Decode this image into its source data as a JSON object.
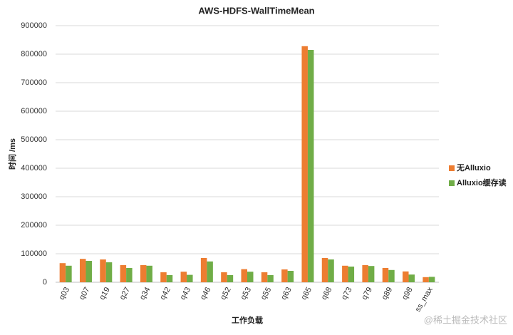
{
  "chart_data": {
    "type": "bar",
    "title": "AWS-HDFS-WallTimeMean",
    "x_label": "工作负载",
    "y_label": "时间 /ms",
    "categories": [
      "q03",
      "q07",
      "q19",
      "q27",
      "q34",
      "q42",
      "q43",
      "q46",
      "q52",
      "q53",
      "q55",
      "q63",
      "q65",
      "q68",
      "q73",
      "q79",
      "q89",
      "q98",
      "ss_max"
    ],
    "series": [
      {
        "name": "无Alluxio",
        "color": "#ed7d31",
        "values": [
          67000,
          82000,
          80000,
          60000,
          60000,
          35000,
          37000,
          85000,
          35000,
          46000,
          35000,
          45000,
          828000,
          85000,
          58000,
          60000,
          50000,
          38000,
          18000
        ]
      },
      {
        "name": "Alluxio缓存读",
        "color": "#70ad47",
        "values": [
          58000,
          75000,
          70000,
          50000,
          58000,
          25000,
          26000,
          73000,
          25000,
          37000,
          25000,
          40000,
          815000,
          80000,
          55000,
          57000,
          43000,
          27000,
          19000
        ]
      }
    ],
    "ylim": [
      0,
      900000
    ],
    "yticks": [
      0,
      100000,
      200000,
      300000,
      400000,
      500000,
      600000,
      700000,
      800000,
      900000
    ],
    "grid": true,
    "legend": "right",
    "watermark": "@稀土掘金技术社区"
  }
}
